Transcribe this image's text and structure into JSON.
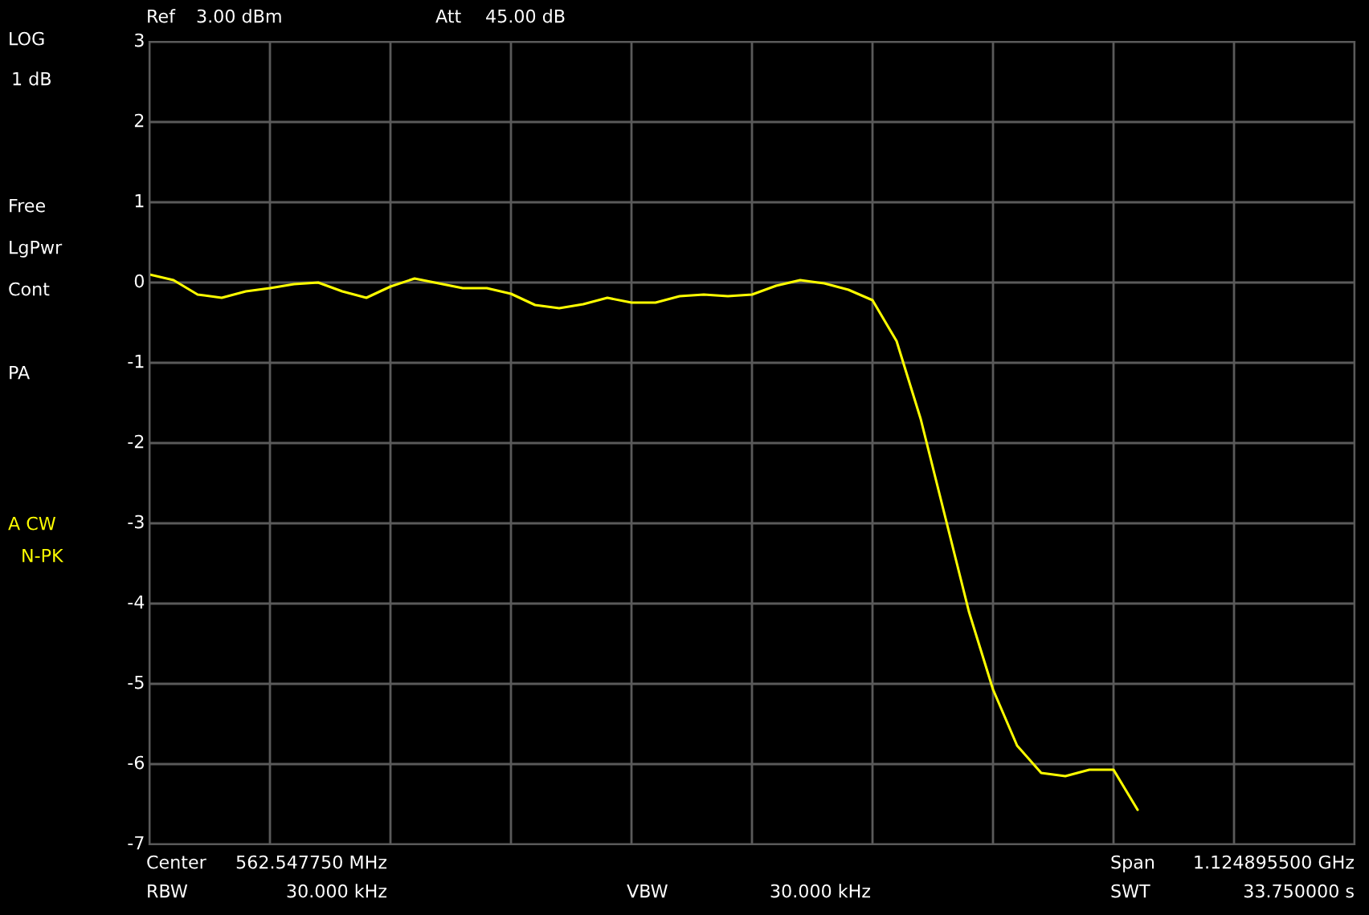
{
  "chart_data": {
    "type": "line",
    "categories": [
      null,
      null,
      null,
      null,
      null,
      null,
      null,
      null,
      null,
      null,
      null,
      null,
      null,
      null,
      null,
      null,
      null,
      null,
      null,
      null,
      null,
      null,
      null,
      null,
      null,
      null,
      null,
      null,
      null,
      null,
      null,
      null,
      null,
      null,
      null,
      null,
      null,
      null,
      null,
      null,
      null,
      null,
      null,
      null,
      null,
      null,
      null,
      null,
      null,
      null,
      null
    ],
    "series": [
      {
        "color": "#ffff00",
        "values": [
          0.1,
          0.03,
          -0.15,
          -0.19,
          -0.11,
          -0.07,
          -0.02,
          0,
          -0.11,
          -0.19,
          -0.05,
          0.05,
          -0.01,
          -0.07,
          -0.07,
          -0.14,
          -0.28,
          -0.32,
          -0.27,
          -0.19,
          -0.25,
          -0.25,
          -0.17,
          -0.15,
          -0.17,
          -0.15,
          -0.04,
          0.03,
          -0.01,
          -0.09,
          -0.22,
          -0.73,
          -1.7,
          -2.9,
          -4.1,
          -5.07,
          -5.77,
          -6.11,
          -6.15,
          -6.07,
          -6.07,
          -6.57,
          null,
          null,
          null,
          null,
          null,
          null,
          null,
          null,
          null
        ]
      }
    ],
    "ylim": [
      -7,
      3
    ],
    "yticks": [
      -7,
      -6,
      -5,
      -4,
      -3,
      -2,
      -1,
      0,
      1,
      2,
      3
    ],
    "grid": true,
    "tick_labels": "y",
    "marker": "none",
    "line_style": "solid",
    "annotations": [
      "Ref",
      "3.00 dBm",
      "Att",
      "45.00 dB",
      "LOG",
      "1 dB",
      "Free",
      "LgPwr",
      "Cont",
      "PA",
      "A CW",
      "N-PK",
      "Center",
      "562.547750 MHz",
      "Span",
      "1.124895500 GHz",
      "RBW",
      "30.000 kHz",
      "VBW",
      "30.000 kHz",
      "SWT",
      "33.750000 s"
    ]
  }
}
